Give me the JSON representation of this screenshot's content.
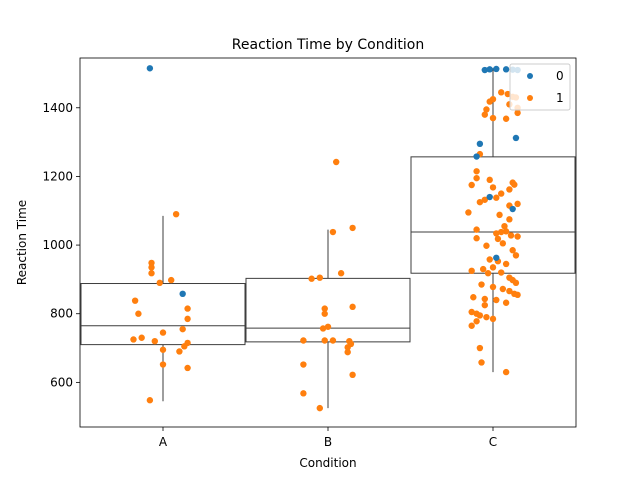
{
  "chart_data": {
    "type": "box-strip",
    "title": "Reaction Time by Condition",
    "xlabel": "Condition",
    "ylabel": "Reaction Time",
    "categories": [
      "A",
      "B",
      "C"
    ],
    "yticks": [
      600,
      800,
      1000,
      1200,
      1400
    ],
    "ylim": [
      470,
      1545
    ],
    "grid": false,
    "legend": {
      "placement": "top-right",
      "entries": [
        {
          "name": "0",
          "color": "#1f77b4"
        },
        {
          "name": "1",
          "color": "#ff7f0e"
        }
      ]
    },
    "boxes": [
      {
        "category": "A",
        "whisker_low": 545,
        "q1": 710,
        "median": 765,
        "q3": 888,
        "whisker_high": 1085
      },
      {
        "category": "B",
        "whisker_low": 525,
        "q1": 718,
        "median": 758,
        "q3": 903,
        "whisker_high": 1045
      },
      {
        "category": "C",
        "whisker_low": 630,
        "q1": 918,
        "median": 1038,
        "q3": 1257,
        "whisker_high": 1515
      }
    ],
    "series": [
      {
        "name": "0",
        "color": "#1f77b4",
        "points": [
          [
            "A",
            -0.08,
            1515
          ],
          [
            "A",
            0.12,
            858
          ],
          [
            "C",
            -0.05,
            1510
          ],
          [
            "C",
            -0.02,
            1512
          ],
          [
            "C",
            0.02,
            1513
          ],
          [
            "C",
            0.08,
            1512
          ],
          [
            "C",
            0.12,
            1511
          ],
          [
            "C",
            0.15,
            1510
          ],
          [
            "C",
            -0.08,
            1295
          ],
          [
            "C",
            0.14,
            1312
          ],
          [
            "C",
            -0.1,
            1258
          ],
          [
            "C",
            -0.02,
            1140
          ],
          [
            "C",
            0.12,
            1105
          ],
          [
            "C",
            0.02,
            963
          ]
        ]
      },
      {
        "name": "1",
        "color": "#ff7f0e",
        "points": [
          [
            "A",
            0.08,
            1090
          ],
          [
            "A",
            -0.07,
            948
          ],
          [
            "A",
            -0.07,
            935
          ],
          [
            "A",
            -0.07,
            918
          ],
          [
            "A",
            0.05,
            898
          ],
          [
            "A",
            -0.02,
            890
          ],
          [
            "A",
            -0.17,
            838
          ],
          [
            "A",
            0.15,
            815
          ],
          [
            "A",
            -0.15,
            800
          ],
          [
            "A",
            0.15,
            785
          ],
          [
            "A",
            0.12,
            755
          ],
          [
            "A",
            0.0,
            745
          ],
          [
            "A",
            -0.13,
            730
          ],
          [
            "A",
            -0.18,
            725
          ],
          [
            "A",
            -0.05,
            720
          ],
          [
            "A",
            0.15,
            715
          ],
          [
            "A",
            0.13,
            705
          ],
          [
            "A",
            0.0,
            695
          ],
          [
            "A",
            0.1,
            690
          ],
          [
            "A",
            0.0,
            652
          ],
          [
            "A",
            0.15,
            642
          ],
          [
            "A",
            -0.08,
            548
          ],
          [
            "B",
            0.05,
            1242
          ],
          [
            "B",
            0.15,
            1050
          ],
          [
            "B",
            0.03,
            1038
          ],
          [
            "B",
            -0.05,
            905
          ],
          [
            "B",
            -0.1,
            902
          ],
          [
            "B",
            0.08,
            918
          ],
          [
            "B",
            0.15,
            820
          ],
          [
            "B",
            -0.02,
            815
          ],
          [
            "B",
            -0.02,
            800
          ],
          [
            "B",
            0.0,
            762
          ],
          [
            "B",
            -0.03,
            757
          ],
          [
            "B",
            -0.15,
            722
          ],
          [
            "B",
            -0.02,
            722
          ],
          [
            "B",
            0.03,
            722
          ],
          [
            "B",
            0.13,
            720
          ],
          [
            "B",
            0.14,
            712
          ],
          [
            "B",
            0.12,
            702
          ],
          [
            "B",
            0.12,
            688
          ],
          [
            "B",
            -0.15,
            652
          ],
          [
            "B",
            0.15,
            622
          ],
          [
            "B",
            -0.15,
            568
          ],
          [
            "B",
            -0.05,
            525
          ],
          [
            "C",
            0.05,
            1445
          ],
          [
            "C",
            0.09,
            1440
          ],
          [
            "C",
            0.12,
            1432
          ],
          [
            "C",
            0.14,
            1430
          ],
          [
            "C",
            0.0,
            1425
          ],
          [
            "C",
            -0.02,
            1418
          ],
          [
            "C",
            0.1,
            1410
          ],
          [
            "C",
            0.15,
            1400
          ],
          [
            "C",
            -0.04,
            1395
          ],
          [
            "C",
            0.15,
            1385
          ],
          [
            "C",
            -0.05,
            1380
          ],
          [
            "C",
            0.0,
            1370
          ],
          [
            "C",
            0.08,
            1368
          ],
          [
            "C",
            -0.08,
            1265
          ],
          [
            "C",
            -0.1,
            1215
          ],
          [
            "C",
            -0.1,
            1195
          ],
          [
            "C",
            -0.02,
            1190
          ],
          [
            "C",
            0.12,
            1182
          ],
          [
            "C",
            0.13,
            1176
          ],
          [
            "C",
            -0.13,
            1175
          ],
          [
            "C",
            0.0,
            1168
          ],
          [
            "C",
            0.1,
            1162
          ],
          [
            "C",
            0.05,
            1150
          ],
          [
            "C",
            0.02,
            1138
          ],
          [
            "C",
            -0.05,
            1132
          ],
          [
            "C",
            -0.08,
            1125
          ],
          [
            "C",
            0.15,
            1120
          ],
          [
            "C",
            0.1,
            1115
          ],
          [
            "C",
            0.04,
            1088
          ],
          [
            "C",
            -0.15,
            1095
          ],
          [
            "C",
            0.1,
            1075
          ],
          [
            "C",
            0.07,
            1055
          ],
          [
            "C",
            -0.1,
            1045
          ],
          [
            "C",
            0.08,
            1040
          ],
          [
            "C",
            0.05,
            1038
          ],
          [
            "C",
            0.02,
            1034
          ],
          [
            "C",
            0.11,
            1028
          ],
          [
            "C",
            0.15,
            1025
          ],
          [
            "C",
            -0.1,
            1020
          ],
          [
            "C",
            0.03,
            1018
          ],
          [
            "C",
            0.06,
            1005
          ],
          [
            "C",
            -0.04,
            998
          ],
          [
            "C",
            0.12,
            985
          ],
          [
            "C",
            0.14,
            970
          ],
          [
            "C",
            -0.02,
            958
          ],
          [
            "C",
            0.03,
            953
          ],
          [
            "C",
            0.08,
            945
          ],
          [
            "C",
            0.0,
            935
          ],
          [
            "C",
            -0.06,
            930
          ],
          [
            "C",
            -0.13,
            925
          ],
          [
            "C",
            0.05,
            920
          ],
          [
            "C",
            -0.03,
            918
          ],
          [
            "C",
            0.1,
            905
          ],
          [
            "C",
            0.12,
            898
          ],
          [
            "C",
            0.14,
            890
          ],
          [
            "C",
            -0.07,
            885
          ],
          [
            "C",
            0.0,
            878
          ],
          [
            "C",
            0.06,
            872
          ],
          [
            "C",
            0.1,
            866
          ],
          [
            "C",
            0.13,
            858
          ],
          [
            "C",
            0.15,
            855
          ],
          [
            "C",
            -0.12,
            848
          ],
          [
            "C",
            -0.05,
            843
          ],
          [
            "C",
            0.02,
            840
          ],
          [
            "C",
            0.08,
            832
          ],
          [
            "C",
            -0.05,
            825
          ],
          [
            "C",
            -0.13,
            805
          ],
          [
            "C",
            -0.1,
            800
          ],
          [
            "C",
            -0.08,
            795
          ],
          [
            "C",
            -0.04,
            790
          ],
          [
            "C",
            0.0,
            785
          ],
          [
            "C",
            -0.1,
            778
          ],
          [
            "C",
            -0.13,
            765
          ],
          [
            "C",
            -0.08,
            700
          ],
          [
            "C",
            -0.07,
            658
          ],
          [
            "C",
            0.08,
            630
          ]
        ]
      }
    ]
  }
}
